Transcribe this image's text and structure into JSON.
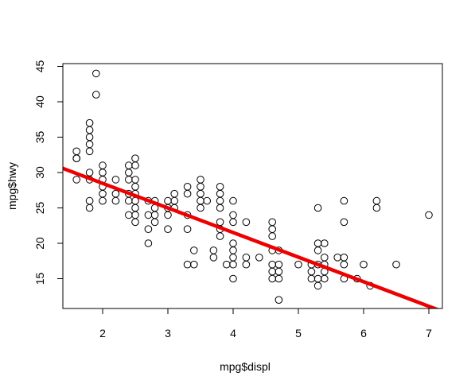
{
  "chart_data": {
    "type": "scatter",
    "title": "",
    "xlabel": "mpg$displ",
    "ylabel": "mpg$hwy",
    "xlim": [
      1.6,
      7.0
    ],
    "ylim": [
      12,
      44
    ],
    "xticks": [
      2,
      3,
      4,
      5,
      6,
      7
    ],
    "yticks": [
      15,
      20,
      25,
      30,
      35,
      40,
      45
    ],
    "grid": false,
    "point_color": "#000000",
    "line_color": "#ee0000",
    "points": [
      [
        1.6,
        33
      ],
      [
        1.6,
        32
      ],
      [
        1.6,
        32
      ],
      [
        1.6,
        29
      ],
      [
        1.8,
        37
      ],
      [
        1.8,
        36
      ],
      [
        1.8,
        35
      ],
      [
        1.8,
        34
      ],
      [
        1.8,
        33
      ],
      [
        1.8,
        30
      ],
      [
        1.8,
        29
      ],
      [
        1.8,
        26
      ],
      [
        1.8,
        25
      ],
      [
        1.9,
        44
      ],
      [
        1.9,
        41
      ],
      [
        2.0,
        31
      ],
      [
        2.0,
        30
      ],
      [
        2.0,
        29
      ],
      [
        2.0,
        28
      ],
      [
        2.0,
        27
      ],
      [
        2.0,
        26
      ],
      [
        2.2,
        29
      ],
      [
        2.2,
        27
      ],
      [
        2.2,
        26
      ],
      [
        2.4,
        31
      ],
      [
        2.4,
        30
      ],
      [
        2.4,
        29
      ],
      [
        2.4,
        27
      ],
      [
        2.4,
        26
      ],
      [
        2.4,
        24
      ],
      [
        2.5,
        32
      ],
      [
        2.5,
        31
      ],
      [
        2.5,
        29
      ],
      [
        2.5,
        28
      ],
      [
        2.5,
        27
      ],
      [
        2.5,
        26
      ],
      [
        2.5,
        25
      ],
      [
        2.5,
        24
      ],
      [
        2.5,
        23
      ],
      [
        2.7,
        26
      ],
      [
        2.7,
        24
      ],
      [
        2.7,
        22
      ],
      [
        2.7,
        20
      ],
      [
        2.8,
        26
      ],
      [
        2.8,
        25
      ],
      [
        2.8,
        24
      ],
      [
        2.8,
        23
      ],
      [
        3.0,
        26
      ],
      [
        3.0,
        25
      ],
      [
        3.0,
        24
      ],
      [
        3.0,
        22
      ],
      [
        3.1,
        27
      ],
      [
        3.1,
        26
      ],
      [
        3.1,
        25
      ],
      [
        3.3,
        28
      ],
      [
        3.3,
        27
      ],
      [
        3.3,
        24
      ],
      [
        3.3,
        22
      ],
      [
        3.3,
        17
      ],
      [
        3.4,
        19
      ],
      [
        3.4,
        17
      ],
      [
        3.5,
        29
      ],
      [
        3.5,
        28
      ],
      [
        3.5,
        27
      ],
      [
        3.5,
        26
      ],
      [
        3.5,
        25
      ],
      [
        3.6,
        26
      ],
      [
        3.7,
        19
      ],
      [
        3.7,
        18
      ],
      [
        3.8,
        28
      ],
      [
        3.8,
        27
      ],
      [
        3.8,
        26
      ],
      [
        3.8,
        25
      ],
      [
        3.8,
        23
      ],
      [
        3.8,
        22
      ],
      [
        3.8,
        21
      ],
      [
        3.9,
        17
      ],
      [
        4.0,
        26
      ],
      [
        4.0,
        24
      ],
      [
        4.0,
        23
      ],
      [
        4.0,
        20
      ],
      [
        4.0,
        19
      ],
      [
        4.0,
        18
      ],
      [
        4.0,
        17
      ],
      [
        4.0,
        15
      ],
      [
        4.2,
        23
      ],
      [
        4.2,
        18
      ],
      [
        4.2,
        17
      ],
      [
        4.4,
        18
      ],
      [
        4.6,
        23
      ],
      [
        4.6,
        22
      ],
      [
        4.6,
        21
      ],
      [
        4.6,
        19
      ],
      [
        4.6,
        17
      ],
      [
        4.6,
        16
      ],
      [
        4.6,
        15
      ],
      [
        4.7,
        19
      ],
      [
        4.7,
        17
      ],
      [
        4.7,
        16
      ],
      [
        4.7,
        15
      ],
      [
        4.7,
        12
      ],
      [
        5.0,
        17
      ],
      [
        5.2,
        17
      ],
      [
        5.2,
        16
      ],
      [
        5.2,
        15
      ],
      [
        5.3,
        25
      ],
      [
        5.3,
        20
      ],
      [
        5.3,
        19
      ],
      [
        5.3,
        17
      ],
      [
        5.3,
        15
      ],
      [
        5.3,
        14
      ],
      [
        5.4,
        20
      ],
      [
        5.4,
        18
      ],
      [
        5.4,
        17
      ],
      [
        5.4,
        16
      ],
      [
        5.4,
        15
      ],
      [
        5.6,
        18
      ],
      [
        5.7,
        26
      ],
      [
        5.7,
        23
      ],
      [
        5.7,
        18
      ],
      [
        5.7,
        17
      ],
      [
        5.7,
        15
      ],
      [
        5.9,
        15
      ],
      [
        6.0,
        17
      ],
      [
        6.1,
        14
      ],
      [
        6.2,
        26
      ],
      [
        6.2,
        25
      ],
      [
        6.5,
        17
      ],
      [
        7.0,
        24
      ]
    ],
    "regression_line": {
      "x": [
        1.3,
        7.2
      ],
      "y": [
        30.9,
        10.4
      ]
    }
  }
}
